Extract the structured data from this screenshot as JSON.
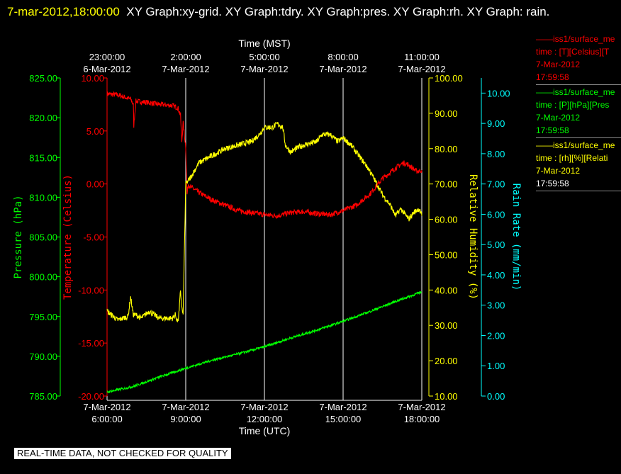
{
  "header": {
    "timestamp": "7-mar-2012,18:00:00",
    "title_rest": "XY Graph:xy-grid.  XY Graph:tdry.  XY Graph:pres.  XY Graph:rh.  XY Graph: rain."
  },
  "legend": [
    {
      "name": "——iss1/surface_me",
      "desc": "time : [T][Celsius][T",
      "date": "7-Mar-2012",
      "time": "17:59:58",
      "color": "#ff0000"
    },
    {
      "name": "——iss1/surface_me",
      "desc": "time : [P][hPa][Pres",
      "date": "7-Mar-2012",
      "time": "17:59:58",
      "color": "#00ff00"
    },
    {
      "name": "——iss1/surface_me",
      "desc": "time : [rh][%][Relati",
      "date": "7-Mar-2012",
      "time": "17:59:58",
      "color": "#ffff00"
    }
  ],
  "footer": "REAL-TIME DATA, NOT CHECKED FOR QUALITY",
  "chart_data": {
    "type": "line",
    "top_axis": {
      "label": "Time (MST)",
      "ticks": [
        {
          "time": "23:00:00",
          "date": "6-Mar-2012",
          "x": 6
        },
        {
          "time": "2:00:00",
          "date": "7-Mar-2012",
          "x": 9
        },
        {
          "time": "5:00:00",
          "date": "7-Mar-2012",
          "x": 12
        },
        {
          "time": "8:00:00",
          "date": "7-Mar-2012",
          "x": 15
        },
        {
          "time": "11:00:00",
          "date": "7-Mar-2012",
          "x": 18
        }
      ]
    },
    "bottom_axis": {
      "label": "Time (UTC)",
      "range": [
        6,
        18
      ],
      "ticks": [
        {
          "date": "7-Mar-2012",
          "time": "6:00:00",
          "x": 6
        },
        {
          "date": "7-Mar-2012",
          "time": "9:00:00",
          "x": 9
        },
        {
          "date": "7-Mar-2012",
          "time": "12:00:00",
          "x": 12
        },
        {
          "date": "7-Mar-2012",
          "time": "15:00:00",
          "x": 15
        },
        {
          "date": "7-Mar-2012",
          "time": "18:00:00",
          "x": 18
        }
      ]
    },
    "y_axes": [
      {
        "id": "pres",
        "label": "Pressure (hPa)",
        "color": "#00ff00",
        "range": [
          785,
          825
        ],
        "ticks": [
          "785.00",
          "790.00",
          "795.00",
          "800.00",
          "805.00",
          "810.00",
          "815.00",
          "820.00",
          "825.00"
        ]
      },
      {
        "id": "temp",
        "label": "Temperature (Celsius)",
        "color": "#ff0000",
        "range": [
          -20,
          10
        ],
        "ticks": [
          "-20.00",
          "-15.00",
          "-10.00",
          "-5.00",
          "0.00",
          "5.00",
          "10.00"
        ]
      },
      {
        "id": "rh",
        "label": "Relative Humidity (%)",
        "color": "#ffff00",
        "range": [
          10,
          100
        ],
        "ticks": [
          "10.00",
          "20.00",
          "30.00",
          "40.00",
          "50.00",
          "60.00",
          "70.00",
          "80.00",
          "90.00",
          "100.00"
        ]
      },
      {
        "id": "rain",
        "label": "Rain Rate (mm/min)",
        "color": "#00ffff",
        "range": [
          0,
          10.5
        ],
        "ticks": [
          "0.00",
          "1.00",
          "2.00",
          "3.00",
          "4.00",
          "5.00",
          "6.00",
          "7.00",
          "8.00",
          "9.00",
          "10.00"
        ]
      }
    ],
    "grid_x": [
      9,
      12,
      15,
      18
    ],
    "series": [
      {
        "axis": "temp",
        "color": "#ff0000",
        "noise": 0.25,
        "x": [
          6.0,
          6.4,
          6.9,
          7.0,
          7.02,
          7.1,
          7.5,
          8.0,
          8.5,
          8.7,
          8.8,
          8.85,
          8.9,
          9.0,
          9.05,
          9.1,
          9.2,
          9.5,
          10.0,
          10.5,
          11.0,
          11.5,
          12.0,
          12.5,
          13.0,
          13.5,
          14.0,
          14.5,
          15.0,
          15.5,
          16.0,
          16.5,
          17.0,
          17.3,
          17.5,
          17.8,
          18.0
        ],
        "y": [
          8.5,
          8.4,
          8.0,
          7.5,
          5.5,
          7.8,
          7.7,
          7.5,
          7.4,
          7.2,
          6.5,
          4.0,
          5.8,
          3.5,
          -1.0,
          0.0,
          -0.3,
          -0.8,
          -1.5,
          -2.0,
          -2.5,
          -2.7,
          -2.9,
          -3.0,
          -2.7,
          -2.6,
          -2.8,
          -2.9,
          -2.5,
          -2.0,
          -1.0,
          0.5,
          1.5,
          2.0,
          1.8,
          1.2,
          1.3
        ]
      },
      {
        "axis": "rh",
        "color": "#ffff00",
        "noise": 0.8,
        "x": [
          6.0,
          6.4,
          6.8,
          6.9,
          7.0,
          7.1,
          7.3,
          7.6,
          8.0,
          8.5,
          8.6,
          8.7,
          8.75,
          8.8,
          8.85,
          8.9,
          9.0,
          9.2,
          9.5,
          10.0,
          10.5,
          11.0,
          11.5,
          11.8,
          12.0,
          12.3,
          12.5,
          12.7,
          12.8,
          12.9,
          13.0,
          13.2,
          13.5,
          14.0,
          14.2,
          14.5,
          14.8,
          15.0,
          15.3,
          15.5,
          16.0,
          16.5,
          16.8,
          17.0,
          17.2,
          17.5,
          17.7,
          17.9,
          18.0
        ],
        "y": [
          34,
          31.5,
          32.5,
          38,
          33,
          33,
          32,
          34,
          32,
          32,
          33,
          31,
          34,
          40,
          35,
          33,
          70,
          72,
          76,
          78,
          80,
          81,
          82,
          84,
          86,
          86,
          87,
          86,
          81,
          80,
          79,
          80,
          81,
          82,
          84,
          84,
          82,
          83,
          81,
          79,
          74,
          67,
          64,
          61,
          63,
          60,
          62,
          63,
          61
        ]
      },
      {
        "axis": "pres",
        "color": "#00ff00",
        "noise": 0.15,
        "x": [
          6.0,
          7.0,
          8.0,
          9.0,
          10.0,
          11.0,
          12.0,
          13.0,
          14.0,
          15.0,
          16.0,
          17.0,
          18.0
        ],
        "y": [
          785.5,
          786.2,
          787.4,
          788.5,
          789.5,
          790.3,
          791.2,
          792.3,
          793.3,
          794.4,
          795.6,
          796.9,
          798.1
        ]
      }
    ]
  }
}
